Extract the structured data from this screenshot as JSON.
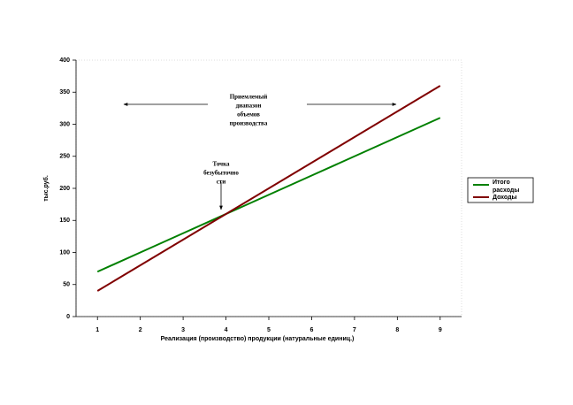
{
  "chart_data": {
    "type": "line",
    "x": [
      1,
      2,
      3,
      4,
      5,
      6,
      7,
      8,
      9
    ],
    "xlim": [
      0.5,
      9.5
    ],
    "xticks": [
      1,
      2,
      3,
      4,
      5,
      6,
      7,
      8,
      9
    ],
    "ylim": [
      0,
      400
    ],
    "yticks": [
      0,
      50,
      100,
      150,
      200,
      250,
      300,
      350,
      400
    ],
    "y_label": "тыс.руб.",
    "x_label": "Реализация (производство) продукции (натуральные единиц.)",
    "series": [
      {
        "name": "Итого расходы",
        "color": "#008000",
        "values": [
          70,
          100,
          130,
          160,
          190,
          220,
          250,
          280,
          310
        ]
      },
      {
        "name": "Доходы",
        "color": "#800000",
        "values": [
          40,
          80,
          120,
          160,
          200,
          240,
          280,
          320,
          360
        ]
      }
    ],
    "legend": "right",
    "annotations": [
      {
        "lines": [
          "Приемлемый",
          "диапазон",
          "объемов",
          "производства"
        ]
      },
      {
        "lines": [
          "Точка",
          "безубыточно",
          "сти"
        ]
      }
    ]
  }
}
